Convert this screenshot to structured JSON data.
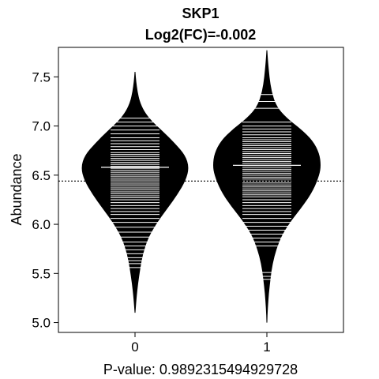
{
  "chart_data": {
    "type": "beanplot",
    "title": "SKP1",
    "subtitle": "Log2(FC)=-0.002",
    "xlabel": "P-value: 0.9892315494929728",
    "ylabel": "Abundance",
    "categories": [
      "0",
      "1"
    ],
    "ylim": [
      4.9,
      7.8
    ],
    "yticks": [
      5.0,
      5.5,
      6.0,
      6.5,
      7.0,
      7.5
    ],
    "ytick_labels": [
      "5.0",
      "5.5",
      "6.0",
      "6.5",
      "7.0",
      "7.5"
    ],
    "overall_mean": 6.44,
    "groups": [
      {
        "name": "0",
        "mean": 6.58,
        "density_range": [
          5.1,
          7.55
        ],
        "density_profile": [
          {
            "y": 5.1,
            "w": 0.0
          },
          {
            "y": 5.25,
            "w": 0.02
          },
          {
            "y": 5.4,
            "w": 0.05
          },
          {
            "y": 5.55,
            "w": 0.09
          },
          {
            "y": 5.7,
            "w": 0.14
          },
          {
            "y": 5.85,
            "w": 0.23
          },
          {
            "y": 6.0,
            "w": 0.38
          },
          {
            "y": 6.15,
            "w": 0.58
          },
          {
            "y": 6.3,
            "w": 0.78
          },
          {
            "y": 6.45,
            "w": 0.94
          },
          {
            "y": 6.58,
            "w": 1.0
          },
          {
            "y": 6.7,
            "w": 0.93
          },
          {
            "y": 6.82,
            "w": 0.74
          },
          {
            "y": 6.95,
            "w": 0.5
          },
          {
            "y": 7.05,
            "w": 0.3
          },
          {
            "y": 7.15,
            "w": 0.16
          },
          {
            "y": 7.25,
            "w": 0.08
          },
          {
            "y": 7.35,
            "w": 0.04
          },
          {
            "y": 7.45,
            "w": 0.015
          },
          {
            "y": 7.55,
            "w": 0.0
          }
        ],
        "observations": [
          5.56,
          5.6,
          5.63,
          5.66,
          5.7,
          5.74,
          5.78,
          5.82,
          5.87,
          5.92,
          5.97,
          6.02,
          6.06,
          6.1,
          6.13,
          6.16,
          6.19,
          6.22,
          6.25,
          6.27,
          6.29,
          6.31,
          6.33,
          6.35,
          6.37,
          6.39,
          6.41,
          6.43,
          6.45,
          6.47,
          6.49,
          6.51,
          6.53,
          6.55,
          6.57,
          6.59,
          6.61,
          6.63,
          6.65,
          6.67,
          6.69,
          6.71,
          6.73,
          6.76,
          6.79,
          6.82,
          6.85,
          6.88,
          6.92,
          6.96,
          7.0,
          7.04,
          7.08
        ]
      },
      {
        "name": "1",
        "mean": 6.6,
        "density_range": [
          5.0,
          7.77
        ],
        "density_profile": [
          {
            "y": 5.0,
            "w": 0.0
          },
          {
            "y": 5.15,
            "w": 0.01
          },
          {
            "y": 5.3,
            "w": 0.03
          },
          {
            "y": 5.45,
            "w": 0.06
          },
          {
            "y": 5.6,
            "w": 0.1
          },
          {
            "y": 5.75,
            "w": 0.17
          },
          {
            "y": 5.9,
            "w": 0.28
          },
          {
            "y": 6.05,
            "w": 0.46
          },
          {
            "y": 6.2,
            "w": 0.68
          },
          {
            "y": 6.35,
            "w": 0.86
          },
          {
            "y": 6.5,
            "w": 0.97
          },
          {
            "y": 6.6,
            "w": 1.0
          },
          {
            "y": 6.72,
            "w": 0.97
          },
          {
            "y": 6.85,
            "w": 0.85
          },
          {
            "y": 6.97,
            "w": 0.62
          },
          {
            "y": 7.08,
            "w": 0.36
          },
          {
            "y": 7.2,
            "w": 0.17
          },
          {
            "y": 7.35,
            "w": 0.08
          },
          {
            "y": 7.5,
            "w": 0.04
          },
          {
            "y": 7.65,
            "w": 0.015
          },
          {
            "y": 7.77,
            "w": 0.0
          }
        ],
        "observations": [
          5.44,
          5.47,
          5.51,
          5.78,
          5.82,
          5.86,
          5.9,
          5.94,
          5.98,
          6.02,
          6.06,
          6.1,
          6.13,
          6.16,
          6.19,
          6.22,
          6.25,
          6.28,
          6.3,
          6.32,
          6.34,
          6.36,
          6.38,
          6.4,
          6.42,
          6.44,
          6.46,
          6.48,
          6.5,
          6.52,
          6.54,
          6.56,
          6.58,
          6.6,
          6.62,
          6.64,
          6.66,
          6.68,
          6.7,
          6.72,
          6.74,
          6.76,
          6.78,
          6.8,
          6.82,
          6.84,
          6.86,
          6.88,
          6.91,
          6.94,
          6.97,
          7.0,
          7.04,
          7.18,
          7.25,
          7.32
        ]
      }
    ],
    "colors": {
      "bean": "#000000",
      "lines": "#ffffff",
      "frame": "#000000"
    }
  }
}
